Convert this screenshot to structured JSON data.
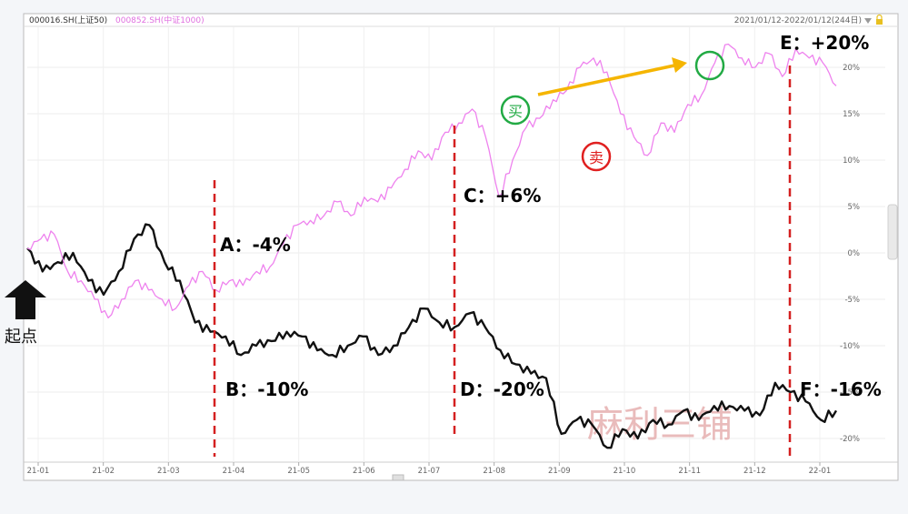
{
  "header": {
    "series1_label": "000016.SH(上证50)",
    "series2_label": "000852.SH(中证1000)",
    "date_range": "2021/01/12-2022/01/12(244日)"
  },
  "start_marker": {
    "label": "起点"
  },
  "watermark": "麻利三铺",
  "colors": {
    "series1": "#111111",
    "series2": "#ee82ee",
    "annotation_red": "#e02020",
    "annotation_black": "#111111",
    "buy": "#22aa44",
    "sell": "#e02020",
    "arrow": "#f5b500"
  },
  "icons": {
    "start": "up-arrow-icon",
    "dropdown": "triangle-down-icon",
    "lock": "lock-icon"
  },
  "chart_data": {
    "type": "line",
    "x_tick_labels": [
      "21-01",
      "21-02",
      "21-03",
      "21-04",
      "21-05",
      "21-06",
      "21-07",
      "21-08",
      "21-09",
      "21-10",
      "21-11",
      "21-12",
      "22-01"
    ],
    "y_tick_labels": [
      "20%",
      "15%",
      "10%",
      "5%",
      "0%",
      "-5%",
      "-10%",
      "-15%",
      "-20%"
    ],
    "ylim": [
      -21,
      23
    ],
    "grid": true,
    "series": [
      {
        "name": "000016.SH(上证50)",
        "color": "#111111",
        "values": [
          0.5,
          -2,
          -1,
          0,
          -3,
          -4.5,
          -2,
          1.5,
          3,
          -1,
          -3,
          -7.5,
          -8.5,
          -9,
          -11,
          -10,
          -9.5,
          -8.5,
          -9,
          -10.5,
          -11,
          -10,
          -9,
          -11,
          -10,
          -8,
          -6,
          -7.5,
          -8,
          -6.5,
          -8,
          -10.5,
          -12,
          -13,
          -13.5,
          -19.5,
          -18,
          -18.5,
          -21,
          -19,
          -20,
          -18,
          -18.5,
          -17,
          -18,
          -16.5,
          -16.5,
          -17,
          -17.5,
          -14,
          -15,
          -16,
          -18,
          -17
        ]
      },
      {
        "name": "000852.SH(中证1000)",
        "color": "#ee82ee",
        "values": [
          0.5,
          1.5,
          2,
          -2,
          -3,
          -5,
          -7,
          -5,
          -3,
          -4,
          -5,
          -6,
          -3.5,
          -2,
          -4,
          -3,
          -3.5,
          -2,
          -1.5,
          1,
          3,
          3.5,
          4,
          5.5,
          4,
          6,
          5.5,
          7,
          9,
          11,
          10,
          13,
          14,
          15.5,
          12.5,
          6,
          10,
          13.5,
          14.5,
          16.5,
          17.5,
          20,
          21,
          19.5,
          15,
          12.5,
          10.5,
          14,
          13,
          16,
          17,
          20.5,
          22.5,
          21,
          20,
          21.5,
          19,
          22,
          21,
          20.5,
          18
        ]
      }
    ],
    "annotations": [
      {
        "text": "A：-4%",
        "color": "#111111"
      },
      {
        "text": "B：-10%",
        "color": "#e02020"
      },
      {
        "text": "C：+6%",
        "color": "#111111"
      },
      {
        "text": "D：-20%",
        "color": "#e02020"
      },
      {
        "text": "E：+20%",
        "color": "#111111"
      },
      {
        "text": "F：-16%",
        "color": "#e02020"
      }
    ],
    "markers": [
      {
        "text": "买",
        "color": "#22aa44"
      },
      {
        "text": "卖",
        "color": "#e02020"
      },
      {
        "text": "",
        "color": "#22aa44"
      }
    ]
  }
}
